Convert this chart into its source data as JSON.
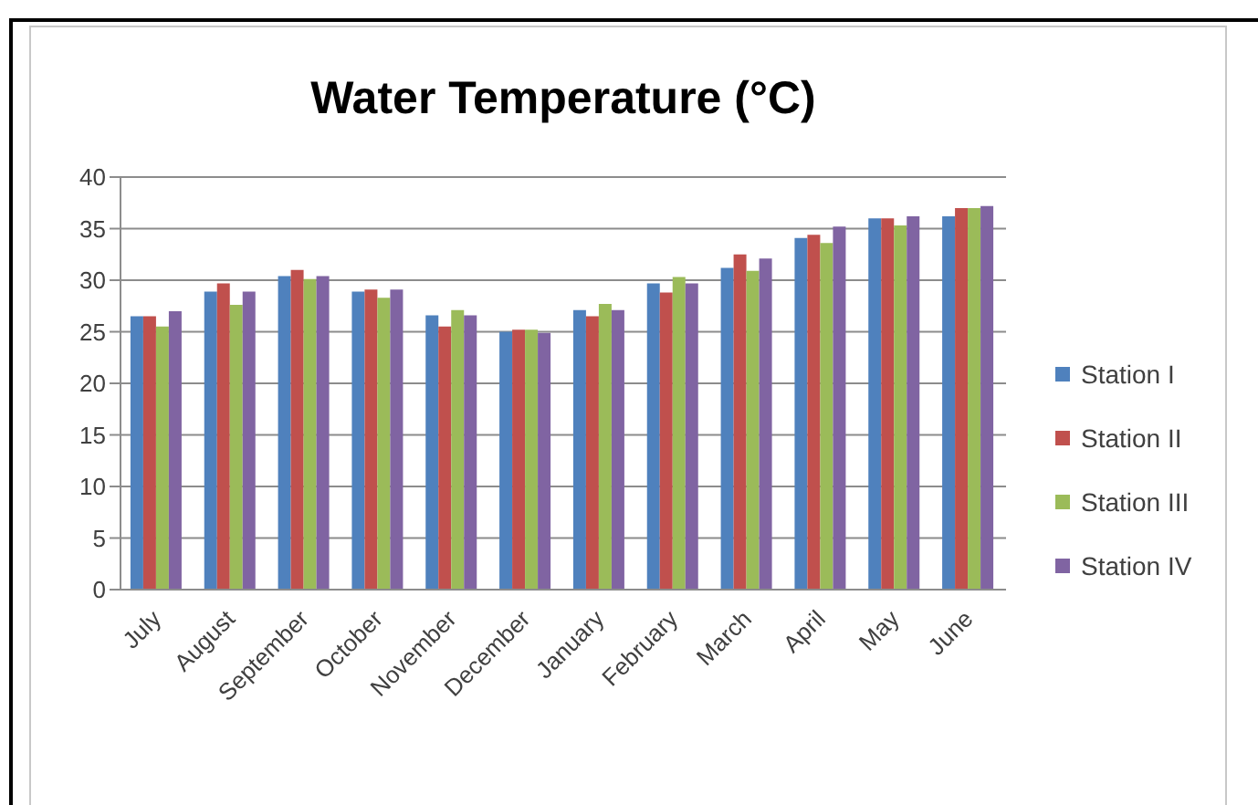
{
  "chart_data": {
    "type": "bar",
    "title": "Water Temperature (°C)",
    "categories": [
      "July",
      "August",
      "September",
      "October",
      "November",
      "December",
      "January",
      "February",
      "March",
      "April",
      "May",
      "June"
    ],
    "series": [
      {
        "name": "Station I",
        "color": "#4f81bd",
        "values": [
          26.5,
          28.9,
          30.4,
          28.9,
          26.6,
          25.0,
          27.1,
          29.7,
          31.2,
          34.1,
          36.0,
          36.2
        ]
      },
      {
        "name": "Station II",
        "color": "#c0504d",
        "values": [
          26.5,
          29.7,
          31.0,
          29.1,
          25.5,
          25.2,
          26.5,
          28.8,
          32.5,
          34.4,
          36.0,
          37.0
        ]
      },
      {
        "name": "Station III",
        "color": "#9bbb59",
        "values": [
          25.5,
          27.6,
          30.1,
          28.3,
          27.1,
          25.2,
          27.7,
          30.3,
          30.9,
          33.6,
          35.3,
          37.0
        ]
      },
      {
        "name": "Station IV",
        "color": "#8064a2",
        "values": [
          27.0,
          28.9,
          30.4,
          29.1,
          26.6,
          24.9,
          27.1,
          29.7,
          32.1,
          35.2,
          36.2,
          37.2
        ]
      }
    ],
    "ylim": [
      0,
      40
    ],
    "yticks": [
      0,
      5,
      10,
      15,
      20,
      25,
      30,
      35,
      40
    ],
    "grid": "y",
    "legend": "right"
  }
}
